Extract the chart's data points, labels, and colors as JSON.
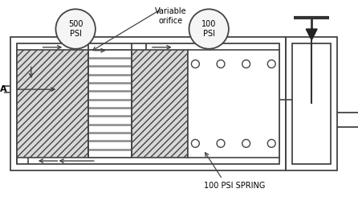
{
  "background_color": "#ffffff",
  "line_color": "#444444",
  "label_500psi": "500\nPSI",
  "label_100psi": "100\nPSI",
  "label_variable": "Variable\norifice",
  "label_A": "A",
  "label_spring": "100 PSI SPRING",
  "fig_width": 4.46,
  "fig_height": 2.5,
  "dpi": 100
}
